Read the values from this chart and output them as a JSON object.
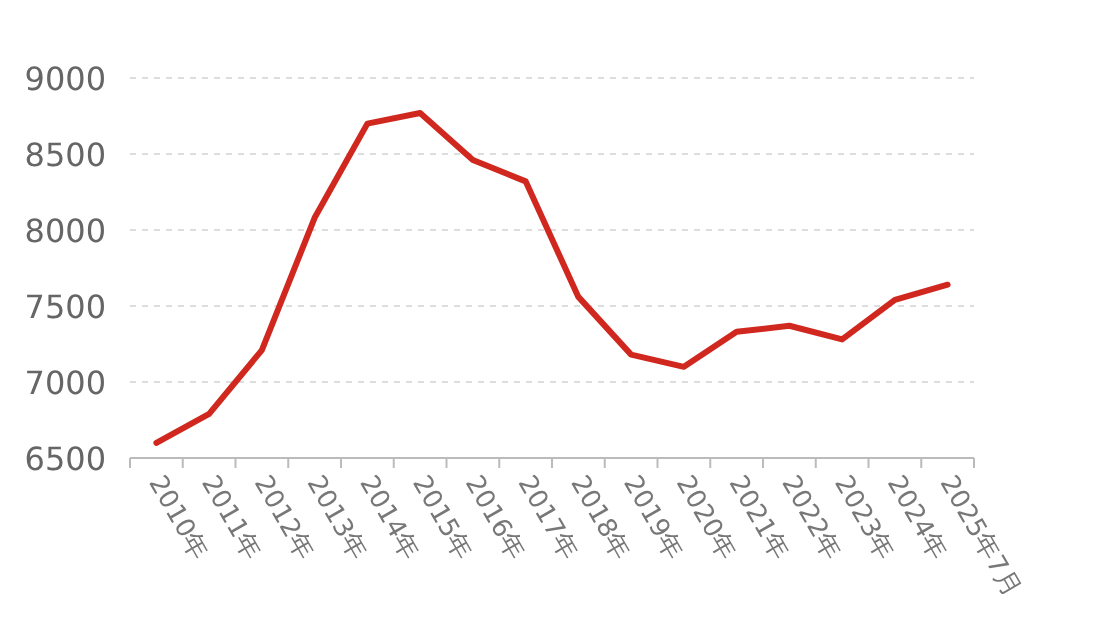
{
  "chart_data": {
    "type": "line",
    "categories": [
      "2010年",
      "2011年",
      "2012年",
      "2013年",
      "2014年",
      "2015年",
      "2016年",
      "2017年",
      "2018年",
      "2019年",
      "2020年",
      "2021年",
      "2022年",
      "2023年",
      "2024年",
      "2025年7月"
    ],
    "series": [
      {
        "color": "#d0281f",
        "values": [
          6600,
          6790,
          7210,
          8080,
          8700,
          8770,
          8460,
          8320,
          7560,
          7180,
          7100,
          7330,
          7370,
          7280,
          7540,
          7640
        ]
      }
    ],
    "ylim": [
      6500,
      9000
    ],
    "yticks": [
      6500,
      7000,
      7500,
      8000,
      8500,
      9000
    ],
    "grid": "y",
    "marker": "none",
    "line_style": "solid"
  }
}
